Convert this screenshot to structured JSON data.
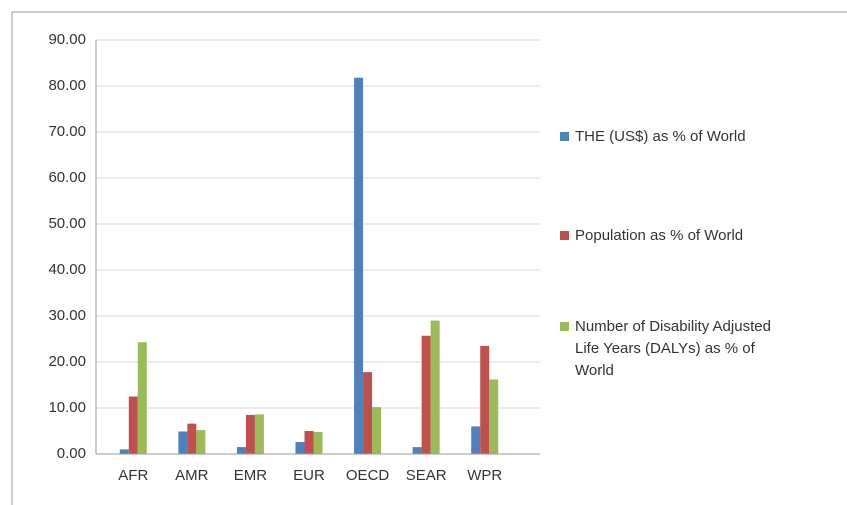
{
  "chart_data": {
    "type": "bar",
    "categories": [
      "AFR",
      "AMR",
      "EMR",
      "EUR",
      "OECD",
      "SEAR",
      "WPR"
    ],
    "series": [
      {
        "name": "THE (US$) as % of World",
        "color": "#4f81bd",
        "values": [
          1.0,
          4.9,
          1.5,
          2.6,
          81.8,
          1.5,
          6.0
        ]
      },
      {
        "name": "Population as % of World",
        "color": "#c0504d",
        "values": [
          12.5,
          6.6,
          8.5,
          5.0,
          17.8,
          25.7,
          23.5
        ]
      },
      {
        "name": "Number of Disability Adjusted Life Years (DALYs) as % of World",
        "color": "#9bbb59",
        "values": [
          24.3,
          5.2,
          8.6,
          4.8,
          10.2,
          29.0,
          16.2
        ]
      }
    ],
    "ylim": [
      0,
      90
    ],
    "yticks": [
      {
        "value": 0,
        "label": "0.00"
      },
      {
        "value": 10,
        "label": "10.00"
      },
      {
        "value": 20,
        "label": "20.00"
      },
      {
        "value": 30,
        "label": "30.00"
      },
      {
        "value": 40,
        "label": "40.00"
      },
      {
        "value": 50,
        "label": "50.00"
      },
      {
        "value": 60,
        "label": "60.00"
      },
      {
        "value": 70,
        "label": "70.00"
      },
      {
        "value": 80,
        "label": "80.00"
      },
      {
        "value": 90,
        "label": "90.00"
      }
    ],
    "grid": true,
    "legend": "right"
  }
}
